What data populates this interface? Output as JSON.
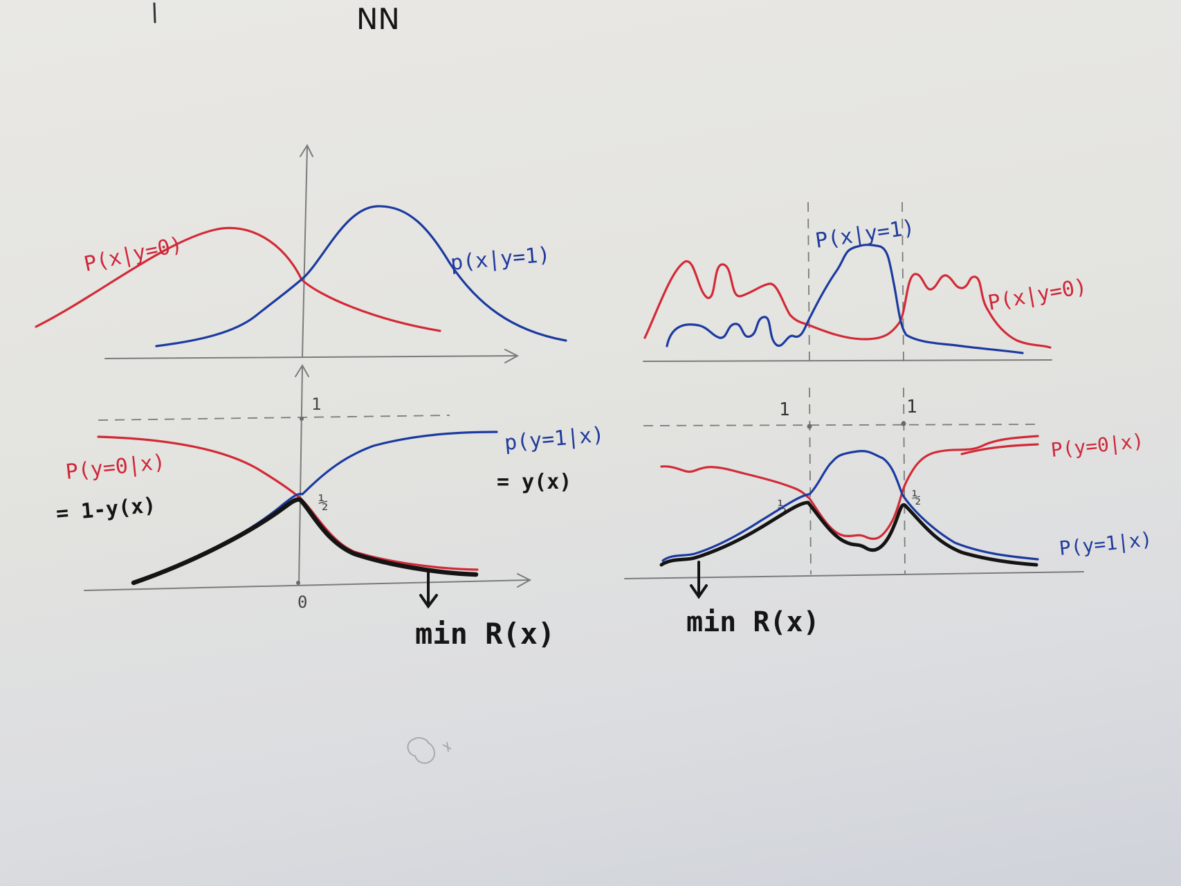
{
  "header": {
    "text": "NN"
  },
  "tl": {
    "red_label": "P(x|y=0)",
    "blue_label": "p(x|y=1)"
  },
  "bl": {
    "one": "1",
    "half": "½",
    "zero": "0",
    "red_label": "P(y=0|x)",
    "red_eq": "= 1-y(x)",
    "blue_label": "p(y=1|x)",
    "blue_eq": "= y(x)",
    "min_label": "min R(x)"
  },
  "tr": {
    "blue_label": "P(x|y=1)",
    "red_label": "P(x|y=0)"
  },
  "br": {
    "one_left": "1",
    "one_right": "1",
    "half_left": "½",
    "half_right": "½",
    "red_label": "P(y=0|x)",
    "blue_label": "P(y=1|x)",
    "min_label": "min R(x)"
  },
  "colors": {
    "class0": "#d22a36",
    "class1": "#1b3aa0",
    "min_risk": "#141414",
    "axes": "#7b7b7b"
  }
}
